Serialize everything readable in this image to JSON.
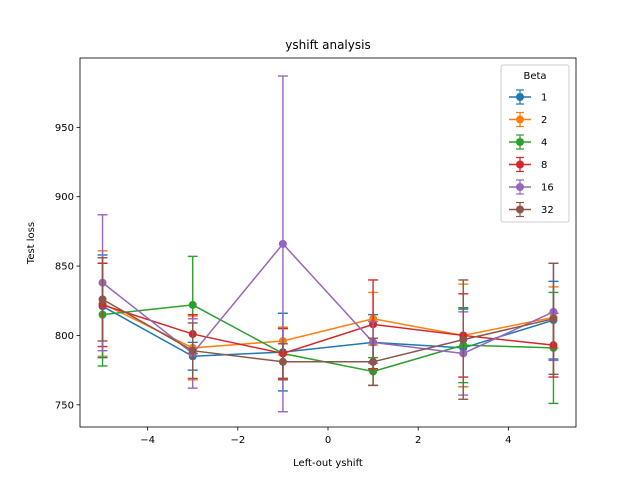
{
  "chart_data": {
    "type": "line",
    "title": "yshift analysis",
    "xlabel": "Left-out yshift",
    "ylabel": "Test loss",
    "xlim": [
      -5.5,
      5.5
    ],
    "ylim": [
      734,
      1000
    ],
    "xticks": [
      -4,
      -2,
      0,
      2,
      4
    ],
    "yticks": [
      750,
      800,
      850,
      900,
      950
    ],
    "grid": false,
    "legend": {
      "title": "Beta",
      "placement": "top-right"
    },
    "x": [
      -5,
      -3,
      -1,
      1,
      3,
      5
    ],
    "series": [
      {
        "name": "1",
        "color": "#1f77b4",
        "values": [
          821,
          785,
          788,
          795,
          791,
          811
        ],
        "errors": [
          37,
          10,
          28,
          20,
          28,
          28
        ]
      },
      {
        "name": "2",
        "color": "#ff7f0e",
        "values": [
          823,
          791,
          796,
          812,
          800,
          813
        ],
        "errors": [
          38,
          23,
          10,
          19,
          37,
          22
        ]
      },
      {
        "name": "4",
        "color": "#2ca02c",
        "values": [
          815,
          822,
          787,
          774,
          793,
          791
        ],
        "errors": [
          37,
          35,
          18,
          10,
          27,
          40
        ]
      },
      {
        "name": "8",
        "color": "#d62728",
        "values": [
          822,
          801,
          787,
          808,
          800,
          793
        ],
        "errors": [
          30,
          14,
          18,
          32,
          30,
          23
        ]
      },
      {
        "name": "16",
        "color": "#9467bd",
        "values": [
          838,
          787,
          866,
          795,
          787,
          817
        ],
        "errors": [
          49,
          25,
          121,
          15,
          30,
          35
        ]
      },
      {
        "name": "32",
        "color": "#8c564b",
        "values": [
          826,
          789,
          781,
          781,
          797,
          812
        ],
        "errors": [
          30,
          20,
          13,
          17,
          43,
          40
        ]
      }
    ]
  }
}
